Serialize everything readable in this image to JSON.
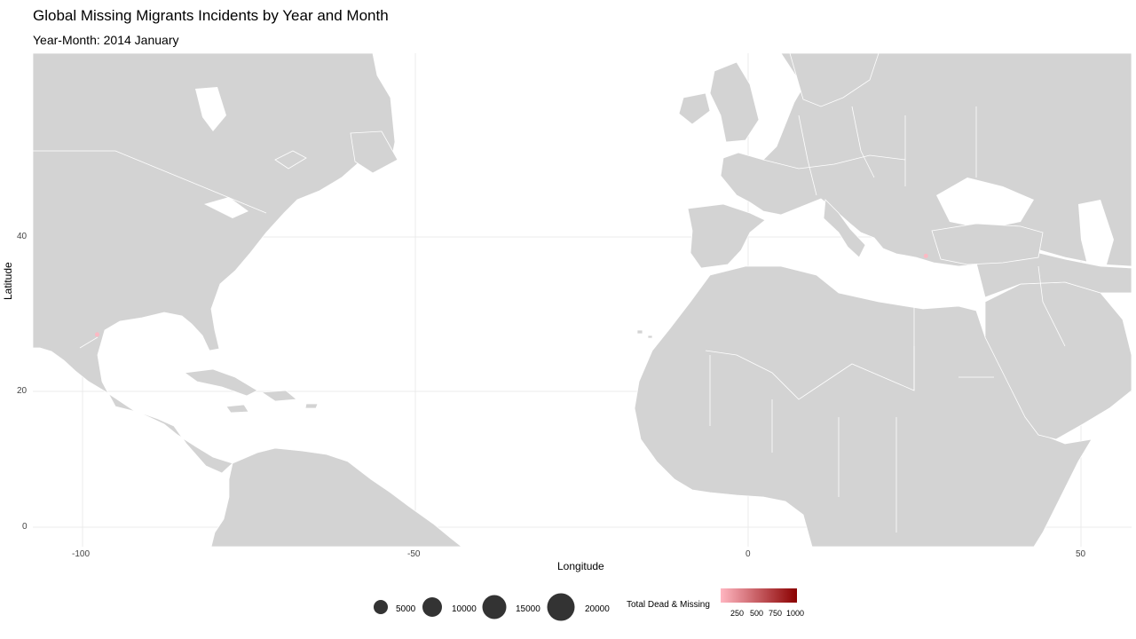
{
  "title": "Global Missing Migrants Incidents by Year and Month",
  "subtitle": "Year-Month: 2014 January",
  "axes": {
    "xlabel": "Longitude",
    "ylabel": "Latitude",
    "x_ticks": [
      "-100",
      "-50",
      "0",
      "50"
    ],
    "y_ticks": [
      "40",
      "20",
      "0"
    ]
  },
  "legend": {
    "size_values": [
      "5000",
      "10000",
      "15000",
      "20000"
    ],
    "color_title": "Total Dead & Missing",
    "color_ticks": [
      "250",
      "500",
      "750",
      "1000"
    ],
    "color_low": "#ffb6c1",
    "color_high": "#8b0000"
  },
  "colors": {
    "land": "#d3d3d3",
    "borders": "#ffffff",
    "grid": "#ebebeb",
    "size_marker": "#333333"
  },
  "chart_data": {
    "type": "scatter",
    "title": "Global Missing Migrants Incidents by Year and Month",
    "subtitle": "Year-Month: 2014 January",
    "xlabel": "Longitude",
    "ylabel": "Latitude",
    "xlim": [
      -107,
      58
    ],
    "ylim": [
      -2.5,
      60
    ],
    "points": [
      {
        "lon": -97.8,
        "lat": 26.8,
        "total_dead_missing": 1
      },
      {
        "lon": 26.7,
        "lat": 37.2,
        "total_dead_missing": 7
      }
    ]
  }
}
